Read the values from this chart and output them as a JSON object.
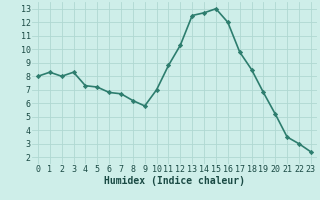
{
  "x": [
    0,
    1,
    2,
    3,
    4,
    5,
    6,
    7,
    8,
    9,
    10,
    11,
    12,
    13,
    14,
    15,
    16,
    17,
    18,
    19,
    20,
    21,
    22,
    23
  ],
  "y": [
    8.0,
    8.3,
    8.0,
    8.3,
    7.3,
    7.2,
    6.8,
    6.7,
    6.2,
    5.8,
    7.0,
    8.8,
    10.3,
    12.5,
    12.7,
    13.0,
    12.0,
    9.8,
    8.5,
    6.8,
    5.2,
    3.5,
    3.0,
    2.4
  ],
  "line_color": "#2d7d6e",
  "marker": "D",
  "marker_size": 2.2,
  "line_width": 1.2,
  "bg_color": "#ceeee9",
  "grid_color": "#b0d8d2",
  "xlabel": "Humidex (Indice chaleur)",
  "xlabel_fontsize": 7,
  "tick_fontsize": 6,
  "xlim": [
    -0.5,
    23.5
  ],
  "ylim": [
    1.5,
    13.5
  ],
  "yticks": [
    2,
    3,
    4,
    5,
    6,
    7,
    8,
    9,
    10,
    11,
    12,
    13
  ],
  "xticks": [
    0,
    1,
    2,
    3,
    4,
    5,
    6,
    7,
    8,
    9,
    10,
    11,
    12,
    13,
    14,
    15,
    16,
    17,
    18,
    19,
    20,
    21,
    22,
    23
  ]
}
